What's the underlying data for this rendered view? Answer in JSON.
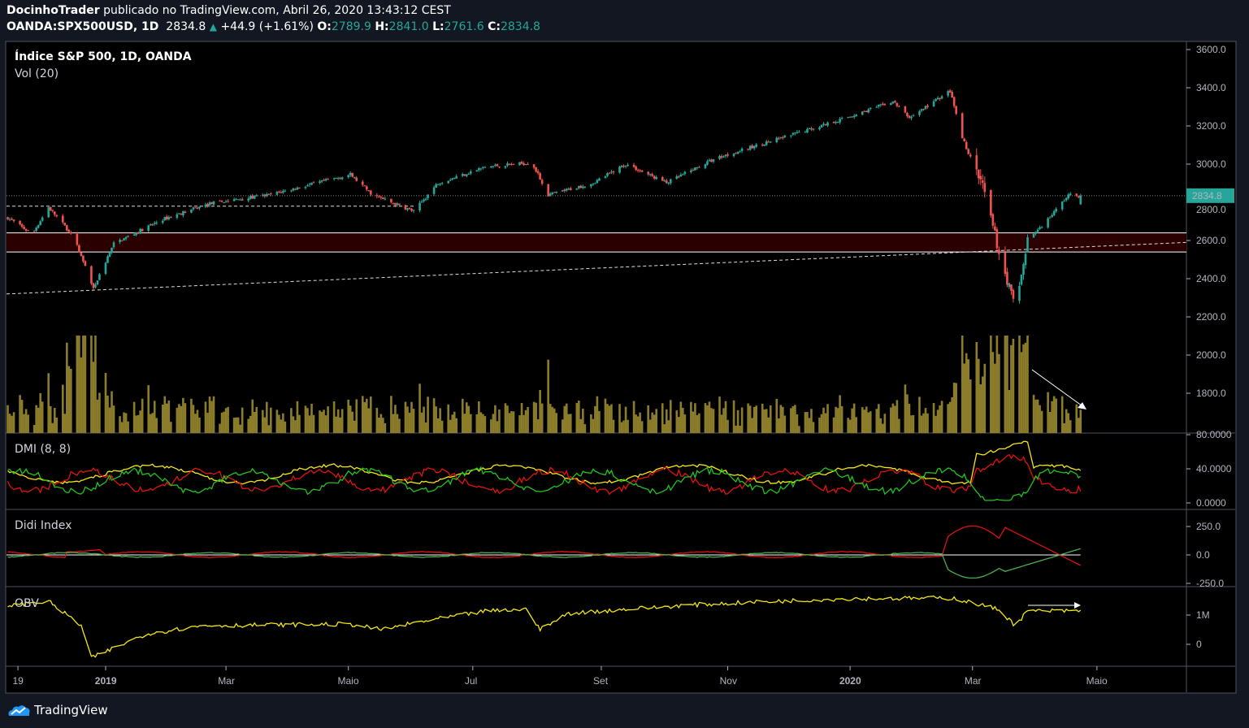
{
  "header": {
    "author": "DocinhoTrader",
    "published": "publicado no TradingView.com, Abril 26, 2020 13:43:12 CEST",
    "symbol": "OANDA:SPX500USD, 1D",
    "last": "2834.8",
    "change": "+44.9 (+1.61%)",
    "o_label": "O:",
    "o": "2789.9",
    "h_label": "H:",
    "h": "2841.0",
    "l_label": "L:",
    "l": "2761.6",
    "c_label": "C:",
    "c": "2834.8"
  },
  "panes": {
    "main_title": "Índice S&P 500, 1D, OANDA",
    "vol_title": "Vol (20)",
    "dmi_title": "DMI (8, 8)",
    "didi_title": "Didi Index",
    "obv_title": "OBV"
  },
  "footer": {
    "brand": "TradingView"
  },
  "colors": {
    "up": "#26a69a",
    "down": "#ef5350",
    "volume": "#8c7d2b",
    "yellow": "#f5e90f",
    "green": "#22c41e",
    "red": "#e3120f",
    "zone": "#2a0000",
    "last_badge": "#26a69a"
  },
  "chart_data": {
    "type": "candlestick",
    "title": "Índice S&P 500, 1D, OANDA",
    "x_unit": "days since 2019-01-01",
    "price_axis": {
      "ticks": [
        "3600.0",
        "3400.0",
        "3200.0",
        "3000.0",
        "2800.0",
        "2600.0",
        "2400.0",
        "2200.0",
        "2000.0",
        "1800.0"
      ],
      "range": [
        1750,
        3650
      ]
    },
    "time_axis": {
      "ticks": [
        {
          "label": "19",
          "day": -43
        },
        {
          "label": "2019",
          "day": 0,
          "bold": true
        },
        {
          "label": "Mar",
          "day": 59
        },
        {
          "label": "Maio",
          "day": 119
        },
        {
          "label": "Jul",
          "day": 180
        },
        {
          "label": "Set",
          "day": 243
        },
        {
          "label": "Nov",
          "day": 305
        },
        {
          "label": "2020",
          "day": 365,
          "bold": true
        },
        {
          "label": "Mar",
          "day": 425
        },
        {
          "label": "Maio",
          "day": 486
        }
      ]
    },
    "last_price_label": "2834.8",
    "close_keypoints": [
      [
        -48,
        2719
      ],
      [
        -36,
        2634
      ],
      [
        -28,
        2774
      ],
      [
        -16,
        2625
      ],
      [
        -6,
        2349
      ],
      [
        4,
        2583
      ],
      [
        28,
        2711
      ],
      [
        52,
        2796
      ],
      [
        80,
        2838
      ],
      [
        120,
        2945
      ],
      [
        131,
        2838
      ],
      [
        151,
        2753
      ],
      [
        163,
        2902
      ],
      [
        187,
        2987
      ],
      [
        209,
        3008
      ],
      [
        217,
        2838
      ],
      [
        239,
        2902
      ],
      [
        255,
        3000
      ],
      [
        275,
        2902
      ],
      [
        299,
        3030
      ],
      [
        331,
        3136
      ],
      [
        363,
        3243
      ],
      [
        386,
        3328
      ],
      [
        394,
        3243
      ],
      [
        414,
        3383
      ],
      [
        420,
        3136
      ],
      [
        430,
        2881
      ],
      [
        438,
        2540
      ],
      [
        446,
        2243
      ],
      [
        452,
        2604
      ],
      [
        462,
        2711
      ],
      [
        472,
        2838
      ],
      [
        478,
        2834.8
      ]
    ],
    "horizontal_levels": [
      2834.8,
      2640,
      2540,
      2780
    ],
    "support_zone": [
      2540,
      2640
    ],
    "trendline": [
      [
        -48,
        2320
      ],
      [
        530,
        2590
      ]
    ],
    "dmi": {
      "ticks": [
        "80.0000",
        "40.0000",
        "0.0000"
      ],
      "range": [
        0,
        80
      ]
    },
    "didi": {
      "ticks": [
        "250.0",
        "0.0",
        "-250.0"
      ],
      "range": [
        -250,
        250
      ]
    },
    "obv": {
      "ticks": [
        "1M",
        "0"
      ],
      "unit": "M",
      "keypoints": [
        [
          -48,
          1.33
        ],
        [
          -28,
          1.47
        ],
        [
          -12,
          0.64
        ],
        [
          -7,
          -0.47
        ],
        [
          2,
          -0.19
        ],
        [
          20,
          0.36
        ],
        [
          48,
          0.64
        ],
        [
          120,
          0.69
        ],
        [
          135,
          0.5
        ],
        [
          155,
          0.78
        ],
        [
          187,
          1.14
        ],
        [
          207,
          1.19
        ],
        [
          213,
          0.5
        ],
        [
          227,
          1.06
        ],
        [
          283,
          1.33
        ],
        [
          327,
          1.47
        ],
        [
          363,
          1.56
        ],
        [
          416,
          1.58
        ],
        [
          422,
          1.47
        ],
        [
          438,
          1.19
        ],
        [
          446,
          0.64
        ],
        [
          452,
          1.14
        ],
        [
          478,
          1.14
        ]
      ]
    }
  }
}
